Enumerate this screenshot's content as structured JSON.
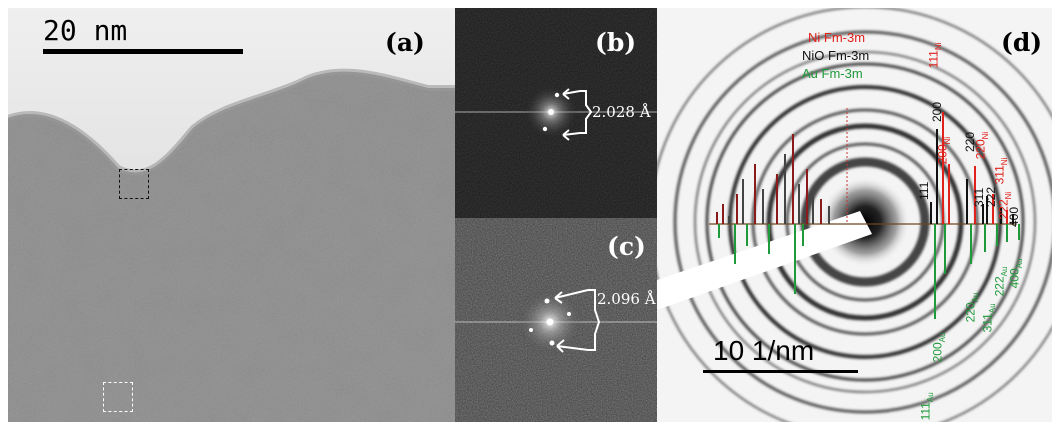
{
  "panel_a": {
    "label": "(a)",
    "scale_bar_text": "20 nm"
  },
  "panel_b": {
    "label": "(b)",
    "d_spacing": "2.028 Å"
  },
  "panel_c": {
    "label": "(c)",
    "d_spacing": "2.096 Å"
  },
  "panel_d": {
    "label": "(d)",
    "scale_bar_text": "10 1/nm",
    "legend": [
      {
        "text": "Ni Fm-3m",
        "color": "#e0201a"
      },
      {
        "text": "NiO Fm-3m",
        "color": "#111111"
      },
      {
        "text": "Au Fm-3m",
        "color": "#1f9a3a"
      }
    ],
    "peak_labels": {
      "ni": [
        {
          "main": "111",
          "sub": "Ni"
        },
        {
          "main": "200",
          "sub": "Ni"
        },
        {
          "main": "220",
          "sub": "Ni"
        },
        {
          "main": "311",
          "sub": "Ni"
        },
        {
          "main": "222",
          "sub": "Ni"
        }
      ],
      "nio": [
        "200",
        "111",
        "220",
        "311",
        "222",
        "400"
      ],
      "au": [
        {
          "main": "111",
          "sub": "Au"
        },
        {
          "main": "200",
          "sub": "Au"
        },
        {
          "main": "220",
          "sub": "Au"
        },
        {
          "main": "311",
          "sub": "Au"
        },
        {
          "main": "222",
          "sub": "Au"
        },
        {
          "main": "400",
          "sub": "Au"
        }
      ]
    }
  }
}
